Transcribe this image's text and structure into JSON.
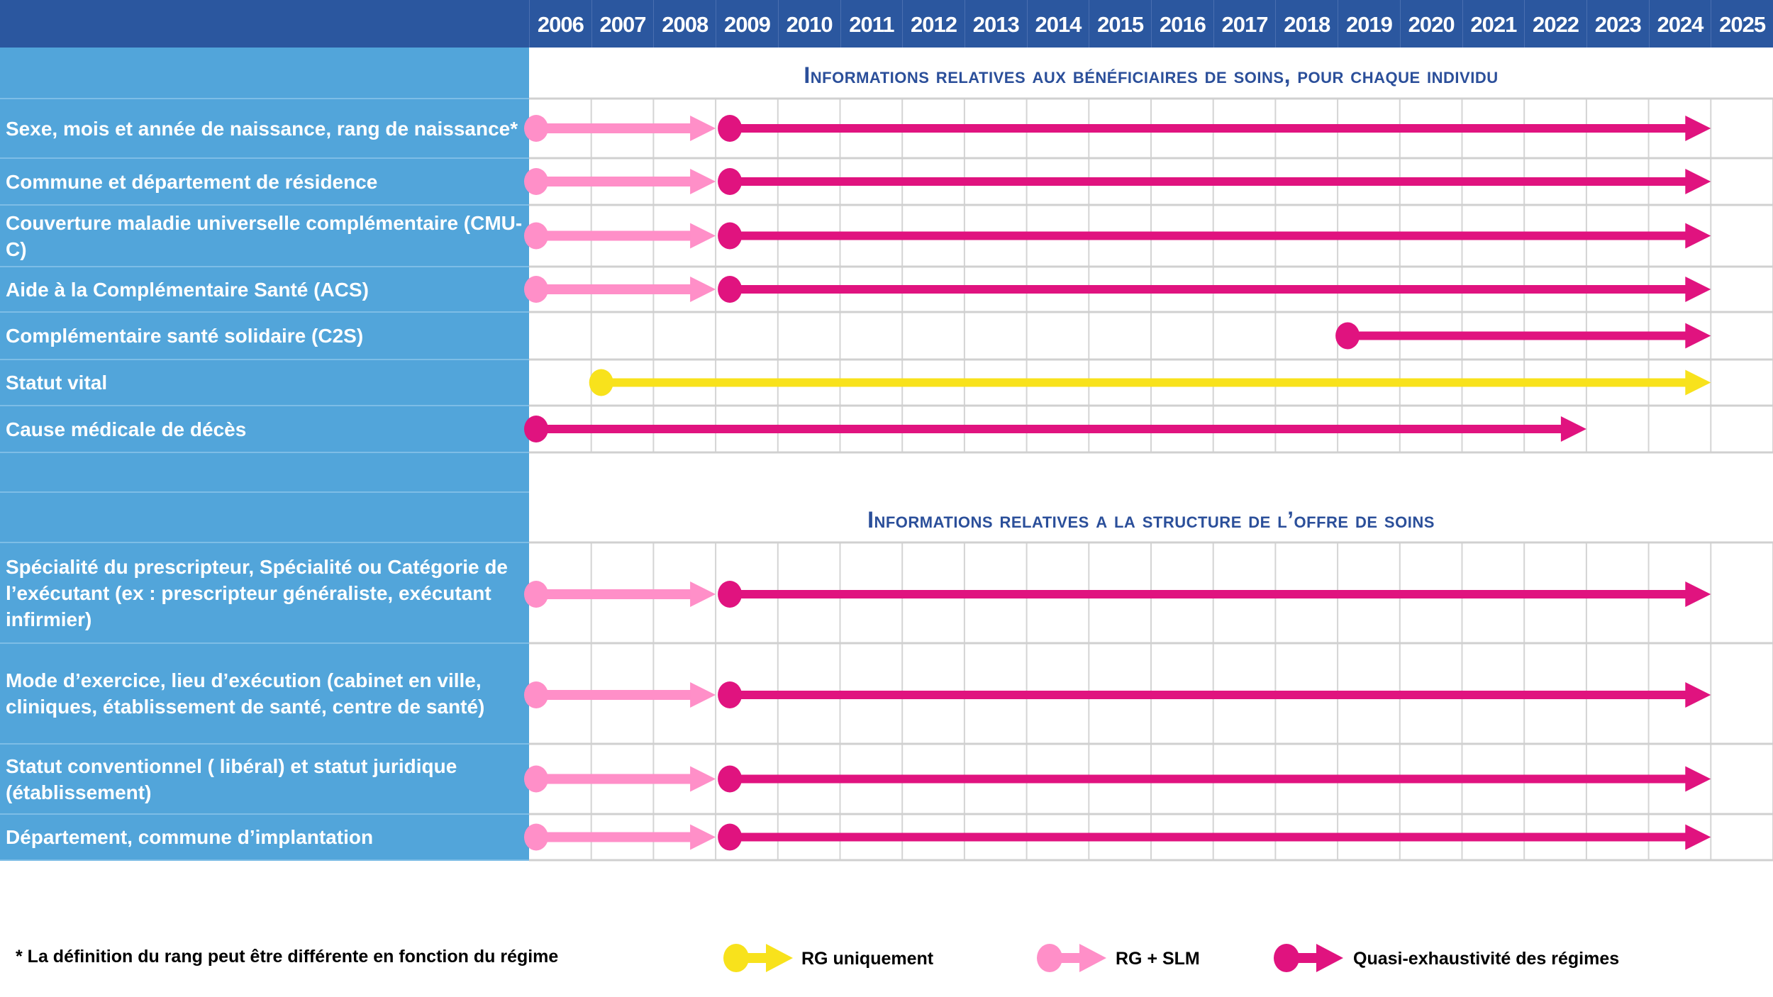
{
  "years": [
    "2006",
    "2007",
    "2008",
    "2009",
    "2010",
    "2011",
    "2012",
    "2013",
    "2014",
    "2015",
    "2016",
    "2017",
    "2018",
    "2019",
    "2020",
    "2021",
    "2022",
    "2023",
    "2024",
    "2025"
  ],
  "colors": {
    "header": "#2b579f",
    "label_column": "#52a5da",
    "title": "#2b4f9a",
    "rg_uniquement": "#f8e21c",
    "rg_slm": "#ff8fc8",
    "quasi_exhaustivite": "#e0137f"
  },
  "sections": [
    {
      "title": "Informations relatives aux bénéficiaires de soins, pour chaque individu"
    },
    {
      "title": "Informations relatives a la structure de l’offre de soins"
    }
  ],
  "rows": [
    {
      "label": "Sexe, mois et année de naissance, rang de naissance*",
      "segments": [
        {
          "type": "rg_slm",
          "start": 2006,
          "end": 2009
        },
        {
          "type": "quasi_exhaustivite",
          "start": 2009,
          "end": 2024
        }
      ]
    },
    {
      "label": "Commune et département de résidence",
      "segments": [
        {
          "type": "rg_slm",
          "start": 2006,
          "end": 2009
        },
        {
          "type": "quasi_exhaustivite",
          "start": 2009,
          "end": 2024
        }
      ]
    },
    {
      "label": "Couverture maladie universelle complémentaire (CMU-C)",
      "segments": [
        {
          "type": "rg_slm",
          "start": 2006,
          "end": 2009
        },
        {
          "type": "quasi_exhaustivite",
          "start": 2009,
          "end": 2024
        }
      ]
    },
    {
      "label": "Aide à la Complémentaire Santé (ACS)",
      "segments": [
        {
          "type": "rg_slm",
          "start": 2006,
          "end": 2009
        },
        {
          "type": "quasi_exhaustivite",
          "start": 2009,
          "end": 2024
        }
      ]
    },
    {
      "label": "Complémentaire santé solidaire (C2S)",
      "segments": [
        {
          "type": "quasi_exhaustivite",
          "start": 2019,
          "end": 2024
        }
      ]
    },
    {
      "label": "Statut vital",
      "segments": [
        {
          "type": "rg_uniquement",
          "start": 2007,
          "end": 2024
        }
      ]
    },
    {
      "label": "Cause médicale de décès",
      "segments": [
        {
          "type": "quasi_exhaustivite",
          "start": 2006,
          "end": 2022
        }
      ]
    },
    {
      "label": "Spécialité du prescripteur, Spécialité ou Catégorie de l’exécutant (ex : prescripteur généraliste, exécutant infirmier)",
      "segments": [
        {
          "type": "rg_slm",
          "start": 2006,
          "end": 2009
        },
        {
          "type": "quasi_exhaustivite",
          "start": 2009,
          "end": 2024
        }
      ]
    },
    {
      "label": "Mode d’exercice, lieu d’exécution (cabinet en ville, cliniques, établissement de santé, centre de santé)",
      "segments": [
        {
          "type": "rg_slm",
          "start": 2006,
          "end": 2009
        },
        {
          "type": "quasi_exhaustivite",
          "start": 2009,
          "end": 2024
        }
      ]
    },
    {
      "label": "Statut conventionnel ( libéral) et statut juridique (établissement)",
      "segments": [
        {
          "type": "rg_slm",
          "start": 2006,
          "end": 2009
        },
        {
          "type": "quasi_exhaustivite",
          "start": 2009,
          "end": 2024
        }
      ]
    },
    {
      "label": "Département, commune d’implantation",
      "segments": [
        {
          "type": "rg_slm",
          "start": 2006,
          "end": 2009
        },
        {
          "type": "quasi_exhaustivite",
          "start": 2009,
          "end": 2024
        }
      ]
    }
  ],
  "footnote": "* La définition du rang peut être différente en fonction du régime",
  "legend": [
    {
      "type": "rg_uniquement",
      "label": "RG uniquement"
    },
    {
      "type": "rg_slm",
      "label": "RG + SLM"
    },
    {
      "type": "quasi_exhaustivite",
      "label": "Quasi-exhaustivité des régimes"
    }
  ]
}
